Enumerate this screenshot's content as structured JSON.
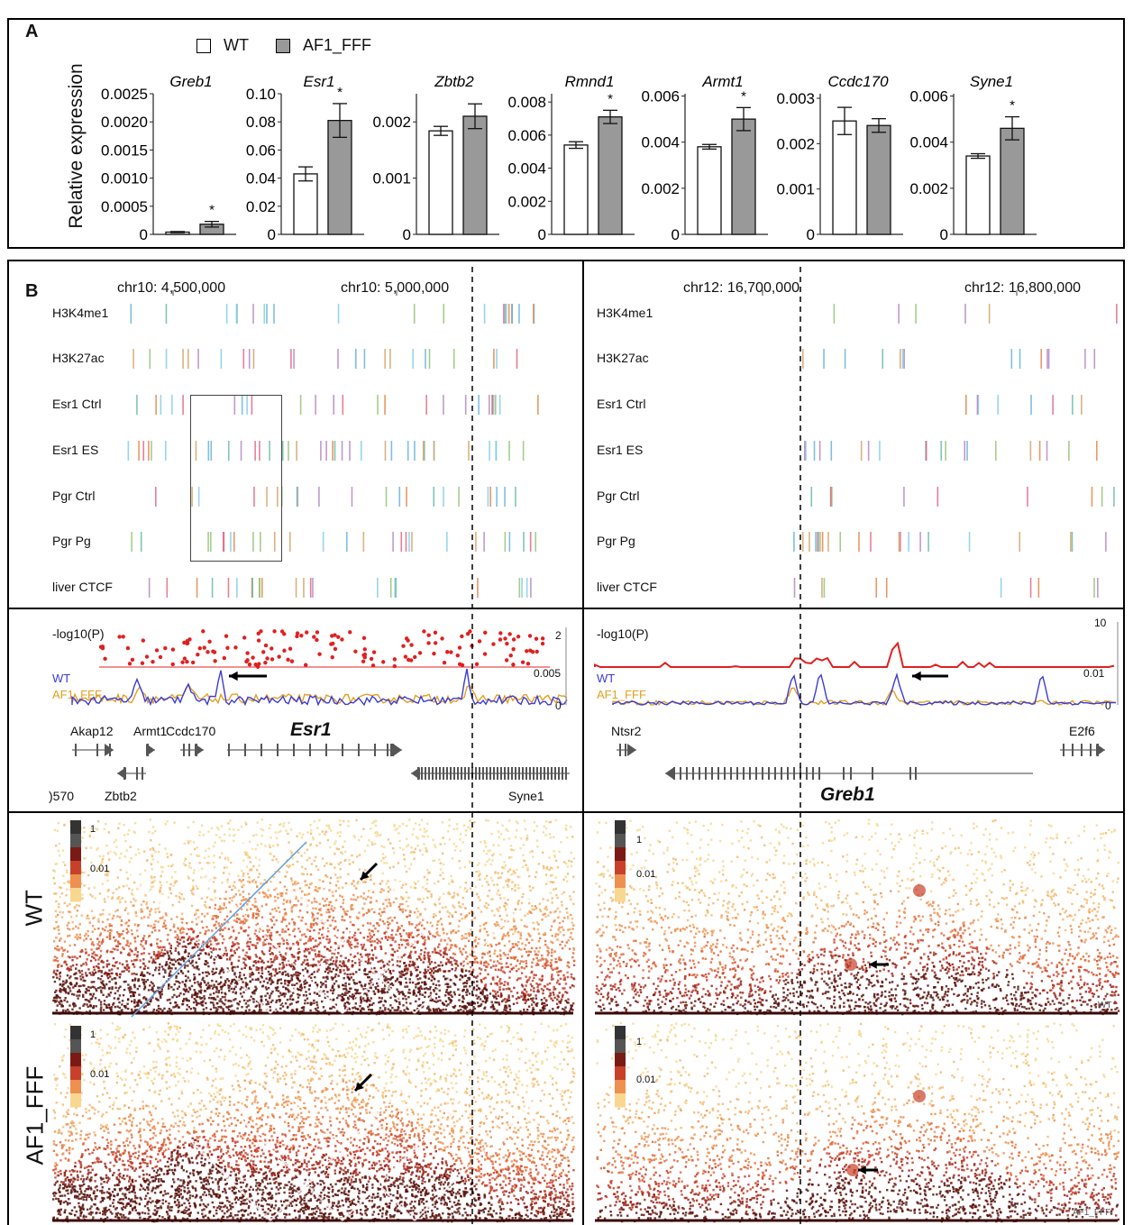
{
  "panel_a": {
    "letter": "A",
    "ylabel": "Relative expression",
    "legend": [
      {
        "label": "WT",
        "color": "#ffffff"
      },
      {
        "label": "AF1_FFF",
        "color": "#999999"
      }
    ]
  },
  "chart_data": [
    {
      "type": "bar",
      "title": "Greb1",
      "categories": [
        "WT",
        "AF1_FFF"
      ],
      "values": [
        4e-05,
        0.00018
      ],
      "errors": [
        1e-05,
        5e-05
      ],
      "ylim": [
        0,
        0.0025
      ],
      "ticks": [
        "0",
        "0.0005",
        "0.0010",
        "0.0015",
        "0.0020",
        "0.0025"
      ],
      "tick_values": [
        0,
        0.0005,
        0.001,
        0.0015,
        0.002,
        0.0025
      ],
      "significance": "*"
    },
    {
      "type": "bar",
      "title": "Esr1",
      "categories": [
        "WT",
        "AF1_FFF"
      ],
      "values": [
        0.043,
        0.081
      ],
      "errors": [
        0.005,
        0.012
      ],
      "ylim": [
        0,
        0.1
      ],
      "ticks": [
        "0",
        "0.02",
        "0.04",
        "0.06",
        "0.08",
        "0.10"
      ],
      "tick_values": [
        0,
        0.02,
        0.04,
        0.06,
        0.08,
        0.1
      ],
      "significance": "*"
    },
    {
      "type": "bar",
      "title": "Zbtb2",
      "categories": [
        "WT",
        "AF1_FFF"
      ],
      "values": [
        0.00184,
        0.0021
      ],
      "errors": [
        8e-05,
        0.00022
      ],
      "ylim": [
        0,
        0.0025
      ],
      "ticks": [
        "0",
        "0.001",
        "0.002"
      ],
      "tick_values": [
        0,
        0.001,
        0.002
      ],
      "significance": ""
    },
    {
      "type": "bar",
      "title": "Rmnd1",
      "categories": [
        "WT",
        "AF1_FFF"
      ],
      "values": [
        0.0054,
        0.0071
      ],
      "errors": [
        0.0002,
        0.0004
      ],
      "ylim": [
        0,
        0.0085
      ],
      "ticks": [
        "0",
        "0.002",
        "0.004",
        "0.006",
        "0.008"
      ],
      "tick_values": [
        0,
        0.002,
        0.004,
        0.006,
        0.008
      ],
      "significance": "*"
    },
    {
      "type": "bar",
      "title": "Armt1",
      "categories": [
        "WT",
        "AF1_FFF"
      ],
      "values": [
        0.0038,
        0.005
      ],
      "errors": [
        0.0001,
        0.0005
      ],
      "ylim": [
        0,
        0.0061
      ],
      "ticks": [
        "0",
        "0.002",
        "0.004",
        "0.006"
      ],
      "tick_values": [
        0,
        0.002,
        0.004,
        0.006
      ],
      "significance": "*"
    },
    {
      "type": "bar",
      "title": "Ccdc170",
      "categories": [
        "WT",
        "AF1_FFF"
      ],
      "values": [
        0.0025,
        0.0024
      ],
      "errors": [
        0.0003,
        0.00015
      ],
      "ylim": [
        0,
        0.0031
      ],
      "ticks": [
        "0",
        "0.001",
        "0.002",
        "0.003"
      ],
      "tick_values": [
        0,
        0.001,
        0.002,
        0.003
      ],
      "significance": ""
    },
    {
      "type": "bar",
      "title": "Syne1",
      "categories": [
        "WT",
        "AF1_FFF"
      ],
      "values": [
        0.0034,
        0.0046
      ],
      "errors": [
        0.0001,
        0.0005
      ],
      "ylim": [
        0,
        0.0061
      ],
      "ticks": [
        "0",
        "0.002",
        "0.004",
        "0.006"
      ],
      "tick_values": [
        0,
        0.002,
        0.004,
        0.006
      ],
      "significance": "*"
    }
  ],
  "panel_b": {
    "letter": "B",
    "left": {
      "coord1": "chr10: 4,500,000",
      "coord2": "chr10: 5,000,000",
      "tracks": [
        "H3K4me1",
        "H3K27ac",
        "Esr1 Ctrl",
        "Esr1 ES",
        "Pgr Ctrl",
        "Pgr Pg",
        "liver CTCF"
      ],
      "pval_label": "-log10(P)",
      "pval_ticks": [
        "2",
        "0"
      ],
      "wt_label": "WT",
      "mut_label": "AF1_FFF",
      "signal_ticks": [
        "0.005",
        "0"
      ],
      "genes_top": [
        "Akap12",
        "Armt1",
        "Ccdc170"
      ],
      "gene_focus": "Esr1",
      "genes_bottom": [
        ")570",
        "Zbtb2",
        "Syne1"
      ],
      "hic_scale": [
        "1",
        "0.01"
      ]
    },
    "right": {
      "coord1": "chr12: 16,700,000",
      "coord2": "chr12: 16,800,000",
      "tracks": [
        "H3K4me1",
        "H3K27ac",
        "Esr1 Ctrl",
        "Esr1 ES",
        "Pgr Ctrl",
        "Pgr Pg",
        "liver CTCF"
      ],
      "pval_label": "-log10(P)",
      "pval_ticks": [
        "10",
        "0"
      ],
      "wt_label": "WT",
      "mut_label": "AF1_FFF",
      "signal_ticks": [
        "0.01",
        "0"
      ],
      "genes_top": [
        "Ntsr2",
        "E2f6"
      ],
      "gene_focus": "Greb1",
      "hic_scale": [
        "1",
        "0.01"
      ],
      "corner_wt": "WT",
      "corner_mut": "AF1_FFF"
    },
    "row_labels": [
      "WT",
      "AF1_FFF"
    ]
  },
  "colors": {
    "wt_line": "#3b3bd6",
    "mut_line": "#e0a020",
    "pval": "#e02020",
    "heat_dark": "#3a0a08",
    "heat_mid": "#c0302a",
    "heat_light": "#f5c060"
  }
}
